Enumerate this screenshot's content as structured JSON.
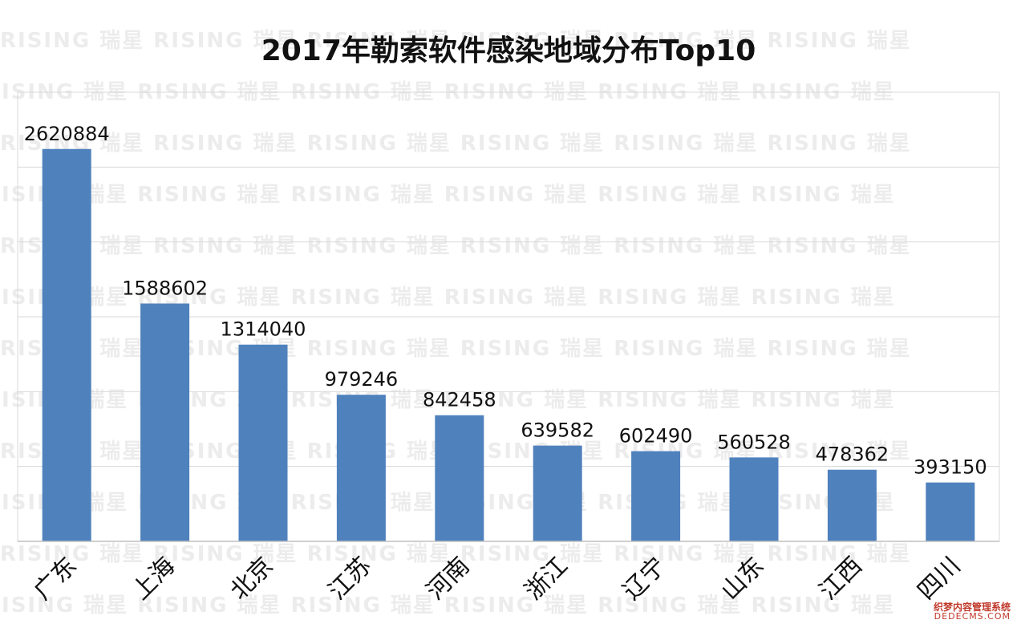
{
  "watermark": {
    "latin": "RISING",
    "cjk": "瑞星"
  },
  "chart_data": {
    "type": "bar",
    "title": "2017年勒索软件感染地域分布Top10",
    "categories": [
      "广东",
      "上海",
      "北京",
      "江苏",
      "河南",
      "浙江",
      "辽宁",
      "山东",
      "江西",
      "四川"
    ],
    "values": [
      2620884,
      1588602,
      1314040,
      979246,
      842458,
      639582,
      602490,
      560528,
      478362,
      393150
    ],
    "ylim": [
      0,
      3000000
    ],
    "grid": true,
    "bar_color": "#4f81bd",
    "xlabel": "",
    "ylabel": ""
  },
  "footer_logo": {
    "line1": "织梦内容管理系统",
    "line2": "DEDECMS.COM"
  }
}
